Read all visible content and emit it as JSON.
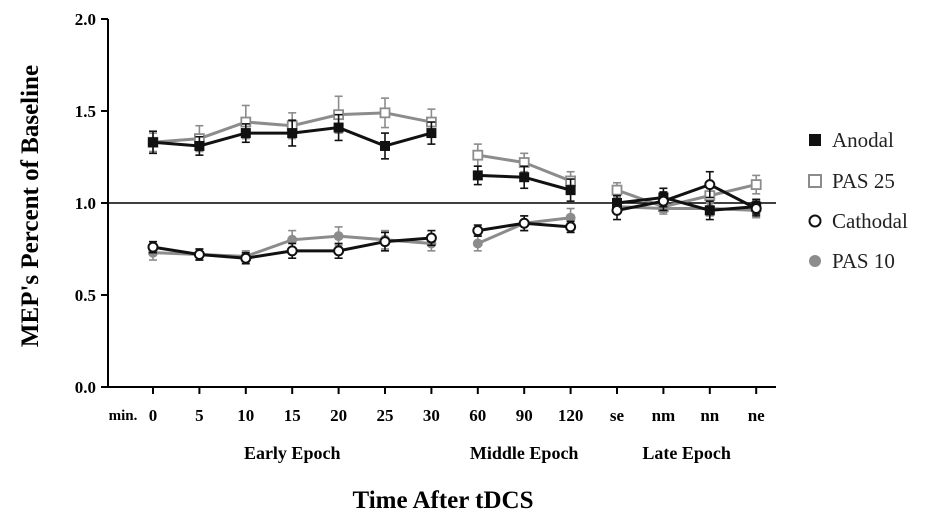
{
  "chart_data": {
    "type": "line",
    "xlabel": "Time After tDCS",
    "ylabel": "MEP's Percent of Baseline",
    "x_unit_label": "min.",
    "categories": [
      "0",
      "5",
      "10",
      "15",
      "20",
      "25",
      "30",
      "60",
      "90",
      "120",
      "se",
      "nm",
      "nn",
      "ne"
    ],
    "groups": [
      {
        "label": "Early Epoch",
        "from": 0,
        "to": 6
      },
      {
        "label": "Middle Epoch",
        "from": 7,
        "to": 9
      },
      {
        "label": "Late Epoch",
        "from": 10,
        "to": 13
      }
    ],
    "ylim": [
      0,
      2.0
    ],
    "yticks": [
      "0.0",
      "0.5",
      "1.0",
      "1.5",
      "2.0"
    ],
    "reference_line": 1.0,
    "legend_position": "right",
    "series": [
      {
        "name": "Anodal",
        "color": "#111111",
        "marker": "filled-square",
        "values": [
          1.33,
          1.31,
          1.38,
          1.38,
          1.41,
          1.31,
          1.38,
          1.15,
          1.14,
          1.07,
          1.0,
          1.03,
          0.96,
          0.98
        ],
        "errors": [
          0.06,
          0.05,
          0.05,
          0.07,
          0.07,
          0.07,
          0.06,
          0.05,
          0.06,
          0.06,
          0.04,
          0.05,
          0.05,
          0.04
        ]
      },
      {
        "name": "PAS 25",
        "color": "#8c8c8c",
        "marker": "open-square",
        "values": [
          1.33,
          1.35,
          1.44,
          1.42,
          1.48,
          1.49,
          1.44,
          1.26,
          1.22,
          1.12,
          1.07,
          0.98,
          1.04,
          1.1
        ],
        "errors": [
          0.05,
          0.07,
          0.09,
          0.07,
          0.1,
          0.08,
          0.07,
          0.06,
          0.05,
          0.05,
          0.04,
          0.03,
          0.04,
          0.05
        ]
      },
      {
        "name": "Cathodal",
        "color": "#111111",
        "marker": "open-circle",
        "values": [
          0.76,
          0.72,
          0.7,
          0.74,
          0.74,
          0.79,
          0.81,
          0.85,
          0.89,
          0.87,
          0.96,
          1.01,
          1.1,
          0.97
        ],
        "errors": [
          0.03,
          0.03,
          0.03,
          0.04,
          0.04,
          0.05,
          0.04,
          0.03,
          0.04,
          0.03,
          0.05,
          0.05,
          0.07,
          0.04
        ]
      },
      {
        "name": "PAS 10",
        "color": "#8c8c8c",
        "marker": "filled-circle",
        "values": [
          0.73,
          0.72,
          0.71,
          0.8,
          0.82,
          0.8,
          0.78,
          0.78,
          0.89,
          0.92,
          0.98,
          0.97,
          0.97,
          0.96
        ],
        "errors": [
          0.04,
          0.03,
          0.03,
          0.05,
          0.05,
          0.05,
          0.04,
          0.04,
          0.04,
          0.05,
          0.03,
          0.03,
          0.04,
          0.04
        ]
      }
    ]
  }
}
